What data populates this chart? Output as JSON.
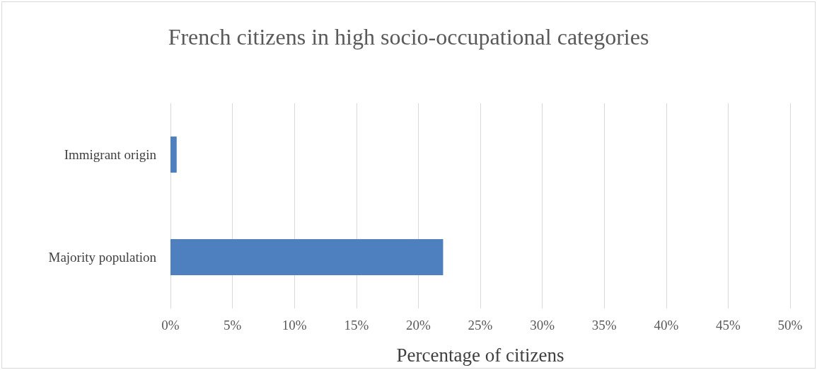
{
  "chart_data": {
    "type": "bar",
    "orientation": "horizontal",
    "title": "French citizens in high socio-occupational categories",
    "xlabel": "Percentage of citizens",
    "categories": [
      "Immigrant origin",
      "Majority population"
    ],
    "values": [
      0.5,
      22
    ],
    "color": "#4e7fbf",
    "xlim": [
      0,
      50
    ],
    "xticks": [
      {
        "value": 0,
        "label": "0%"
      },
      {
        "value": 5,
        "label": "5%"
      },
      {
        "value": 10,
        "label": "10%"
      },
      {
        "value": 15,
        "label": "15%"
      },
      {
        "value": 20,
        "label": "20%"
      },
      {
        "value": 25,
        "label": "25%"
      },
      {
        "value": 30,
        "label": "30%"
      },
      {
        "value": 35,
        "label": "35%"
      },
      {
        "value": 40,
        "label": "40%"
      },
      {
        "value": 45,
        "label": "45%"
      },
      {
        "value": 50,
        "label": "50%"
      }
    ],
    "grid": "x"
  }
}
